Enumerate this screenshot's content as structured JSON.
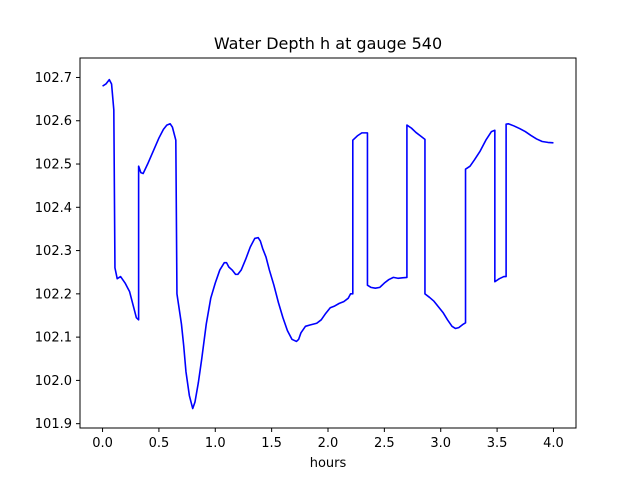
{
  "chart_data": {
    "type": "line",
    "title": "Water Depth h at gauge 540",
    "xlabel": "hours",
    "ylabel": "",
    "xlim": [
      -0.2,
      4.2
    ],
    "ylim": [
      101.89,
      102.745
    ],
    "xticks": [
      0.0,
      0.5,
      1.0,
      1.5,
      2.0,
      2.5,
      3.0,
      3.5,
      4.0
    ],
    "xtick_labels": [
      "0.0",
      "0.5",
      "1.0",
      "1.5",
      "2.0",
      "2.5",
      "3.0",
      "3.5",
      "4.0"
    ],
    "yticks": [
      101.9,
      102.0,
      102.1,
      102.2,
      102.3,
      102.4,
      102.5,
      102.6,
      102.7
    ],
    "ytick_labels": [
      "101.9",
      "102.0",
      "102.1",
      "102.2",
      "102.3",
      "102.4",
      "102.5",
      "102.6",
      "102.7"
    ],
    "grid": false,
    "series": [
      {
        "color": "#0000ff",
        "x": [
          0.0,
          0.03,
          0.06,
          0.08,
          0.1,
          0.11,
          0.13,
          0.16,
          0.2,
          0.24,
          0.27,
          0.3,
          0.32,
          0.32,
          0.34,
          0.36,
          0.4,
          0.45,
          0.5,
          0.54,
          0.57,
          0.6,
          0.62,
          0.65,
          0.66,
          0.68,
          0.7,
          0.72,
          0.74,
          0.77,
          0.8,
          0.82,
          0.85,
          0.88,
          0.92,
          0.96,
          1.0,
          1.04,
          1.08,
          1.1,
          1.12,
          1.15,
          1.18,
          1.2,
          1.23,
          1.27,
          1.31,
          1.35,
          1.38,
          1.4,
          1.42,
          1.45,
          1.48,
          1.52,
          1.56,
          1.6,
          1.64,
          1.68,
          1.72,
          1.74,
          1.76,
          1.8,
          1.84,
          1.87,
          1.9,
          1.94,
          1.98,
          2.02,
          2.06,
          2.1,
          2.14,
          2.18,
          2.2,
          2.22,
          2.22,
          2.26,
          2.3,
          2.34,
          2.35,
          2.35,
          2.38,
          2.42,
          2.46,
          2.5,
          2.54,
          2.58,
          2.62,
          2.66,
          2.7,
          2.7,
          2.74,
          2.78,
          2.82,
          2.86,
          2.86,
          2.9,
          2.94,
          2.98,
          3.02,
          3.06,
          3.1,
          3.13,
          3.16,
          3.2,
          3.22,
          3.22,
          3.26,
          3.3,
          3.35,
          3.4,
          3.45,
          3.48,
          3.48,
          3.52,
          3.56,
          3.58,
          3.58,
          3.6,
          3.65,
          3.7,
          3.75,
          3.8,
          3.85,
          3.9,
          3.95,
          4.0
        ],
        "values": [
          102.68,
          102.685,
          102.695,
          102.685,
          102.625,
          102.26,
          102.235,
          102.24,
          102.225,
          102.205,
          102.175,
          102.145,
          102.14,
          102.495,
          102.48,
          102.478,
          102.5,
          102.53,
          102.56,
          102.58,
          102.59,
          102.593,
          102.585,
          102.555,
          102.2,
          102.165,
          102.13,
          102.08,
          102.02,
          101.965,
          101.935,
          101.95,
          101.995,
          102.05,
          102.13,
          102.19,
          102.225,
          102.255,
          102.272,
          102.272,
          102.262,
          102.255,
          102.245,
          102.245,
          102.255,
          102.28,
          102.308,
          102.328,
          102.33,
          102.322,
          102.305,
          102.285,
          102.255,
          102.22,
          102.18,
          102.145,
          102.115,
          102.095,
          102.09,
          102.095,
          102.11,
          102.125,
          102.128,
          102.13,
          102.132,
          102.14,
          102.155,
          102.168,
          102.172,
          102.178,
          102.182,
          102.19,
          102.2,
          102.2,
          102.555,
          102.565,
          102.572,
          102.572,
          102.572,
          102.22,
          102.215,
          102.213,
          102.215,
          102.225,
          102.233,
          102.238,
          102.236,
          102.237,
          102.238,
          102.59,
          102.583,
          102.573,
          102.565,
          102.557,
          102.2,
          102.192,
          102.183,
          102.17,
          102.157,
          102.14,
          102.125,
          102.12,
          102.122,
          102.13,
          102.133,
          102.488,
          102.495,
          102.51,
          102.53,
          102.555,
          102.575,
          102.578,
          102.228,
          102.235,
          102.24,
          102.24,
          102.592,
          102.593,
          102.588,
          102.582,
          102.575,
          102.566,
          102.558,
          102.552,
          102.55,
          102.549
        ]
      }
    ]
  }
}
